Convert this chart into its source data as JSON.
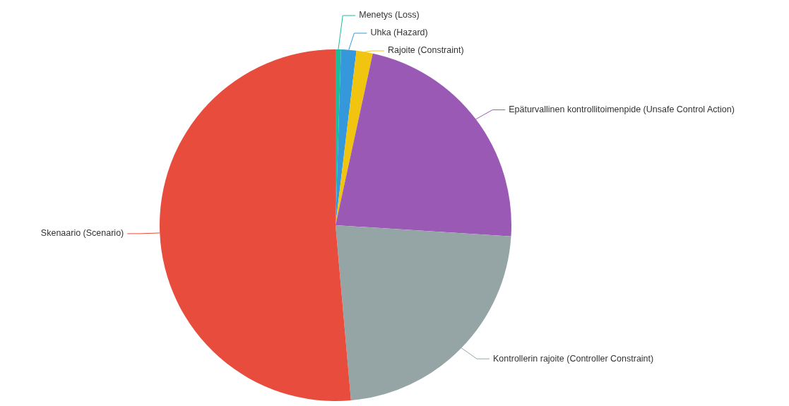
{
  "chart_data": {
    "type": "pie",
    "categories": [
      "Menetys (Loss)",
      "Uhka (Hazard)",
      "Rajoite (Constraint)",
      "Epäturvallinen kontrollitoimenpide (Unsafe Control Action)",
      "Kontrollerin rajoite (Controller Constraint)",
      "Skenaario (Scenario)"
    ],
    "values": [
      0.5,
      1.4,
      1.5,
      22.6,
      22.6,
      51.4
    ],
    "colors": [
      "#1abc9c",
      "#3498db",
      "#f1c40f",
      "#9b59b6",
      "#95a5a6",
      "#e74c3c"
    ]
  }
}
